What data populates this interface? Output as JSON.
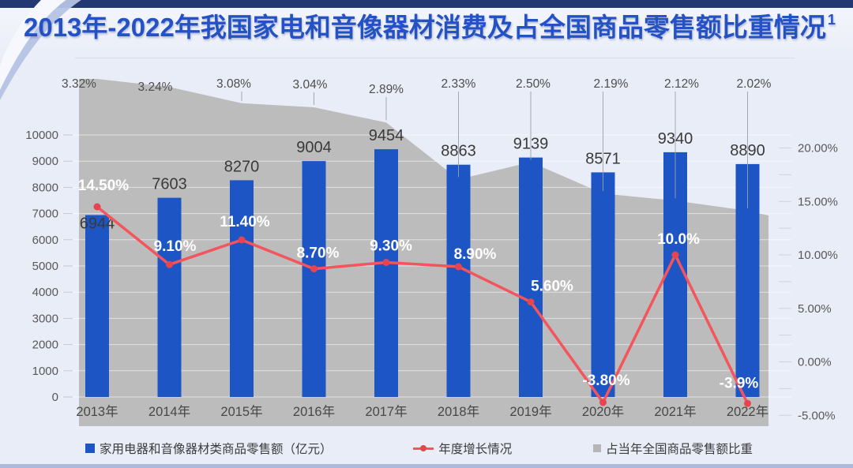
{
  "header": {
    "title": "2013年-2022年我国家电和音像器材消费及占全国商品零售额比重情况",
    "superscript": "1"
  },
  "chart_data": {
    "type": "combo",
    "title": "2013年-2022年我国家电和音像器材消费及占全国商品零售额比重情况",
    "categories": [
      "2013年",
      "2014年",
      "2015年",
      "2016年",
      "2017年",
      "2018年",
      "2019年",
      "2020年",
      "2021年",
      "2022年"
    ],
    "series": [
      {
        "name": "家用电器和音像器材类商品零售额（亿元）",
        "type": "bar",
        "color": "#1d55c4",
        "values": [
          6944,
          7603,
          8270,
          9004,
          9454,
          8863,
          9139,
          8571,
          9340,
          8890
        ],
        "labels": [
          "6944",
          "7603",
          "8270",
          "9004",
          "9454",
          "8863",
          "9139",
          "8571",
          "9340",
          "8890"
        ]
      },
      {
        "name": "年度增长情况",
        "type": "line",
        "color": "#f4555c",
        "marker_color": "#e64550",
        "values": [
          14.5,
          9.1,
          11.4,
          8.7,
          9.3,
          8.9,
          5.6,
          -3.8,
          10.0,
          -3.9
        ],
        "labels": [
          "14.50%",
          "9.10%",
          "11.40%",
          "8.70%",
          "9.30%",
          "8.90%",
          "5.60%",
          "-3.80%",
          "10.0%",
          "-3.9%"
        ]
      },
      {
        "name": "占当年全国商品零售额比重",
        "type": "area",
        "color": "#bcbcbc",
        "values": [
          3.32,
          3.24,
          3.08,
          3.04,
          2.89,
          2.33,
          2.5,
          2.19,
          2.12,
          2.02
        ],
        "labels": [
          "3.32%",
          "3.24%",
          "3.08%",
          "3.04%",
          "2.89%",
          "2.33%",
          "2.50%",
          "2.19%",
          "2.12%",
          "2.02%"
        ]
      }
    ],
    "left_axis": {
      "ticks": [
        "0",
        "1000",
        "2000",
        "3000",
        "4000",
        "5000",
        "6000",
        "7000",
        "8000",
        "9000",
        "10000"
      ],
      "min": 0,
      "max": 10000
    },
    "right_axis": {
      "ticks": [
        "-5.00%",
        "0.00%",
        "5.00%",
        "10.00%",
        "15.00%",
        "20.00%"
      ],
      "min": -5,
      "max": 20
    },
    "grid": true,
    "legend_position": "bottom"
  }
}
